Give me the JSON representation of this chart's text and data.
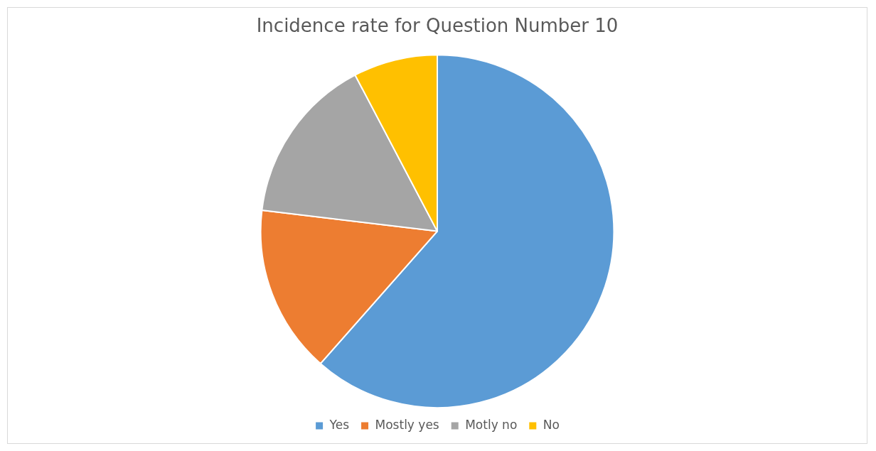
{
  "chart_data": {
    "type": "pie",
    "title": "Incidence rate for Question Number 10",
    "categories": [
      "Yes",
      "Mostly yes",
      "Motly no",
      "No"
    ],
    "values": [
      61.5,
      15.4,
      15.4,
      7.7
    ],
    "colors": [
      "#5b9bd5",
      "#ed7d31",
      "#a5a5a5",
      "#ffc000"
    ],
    "legend": "bottom"
  }
}
